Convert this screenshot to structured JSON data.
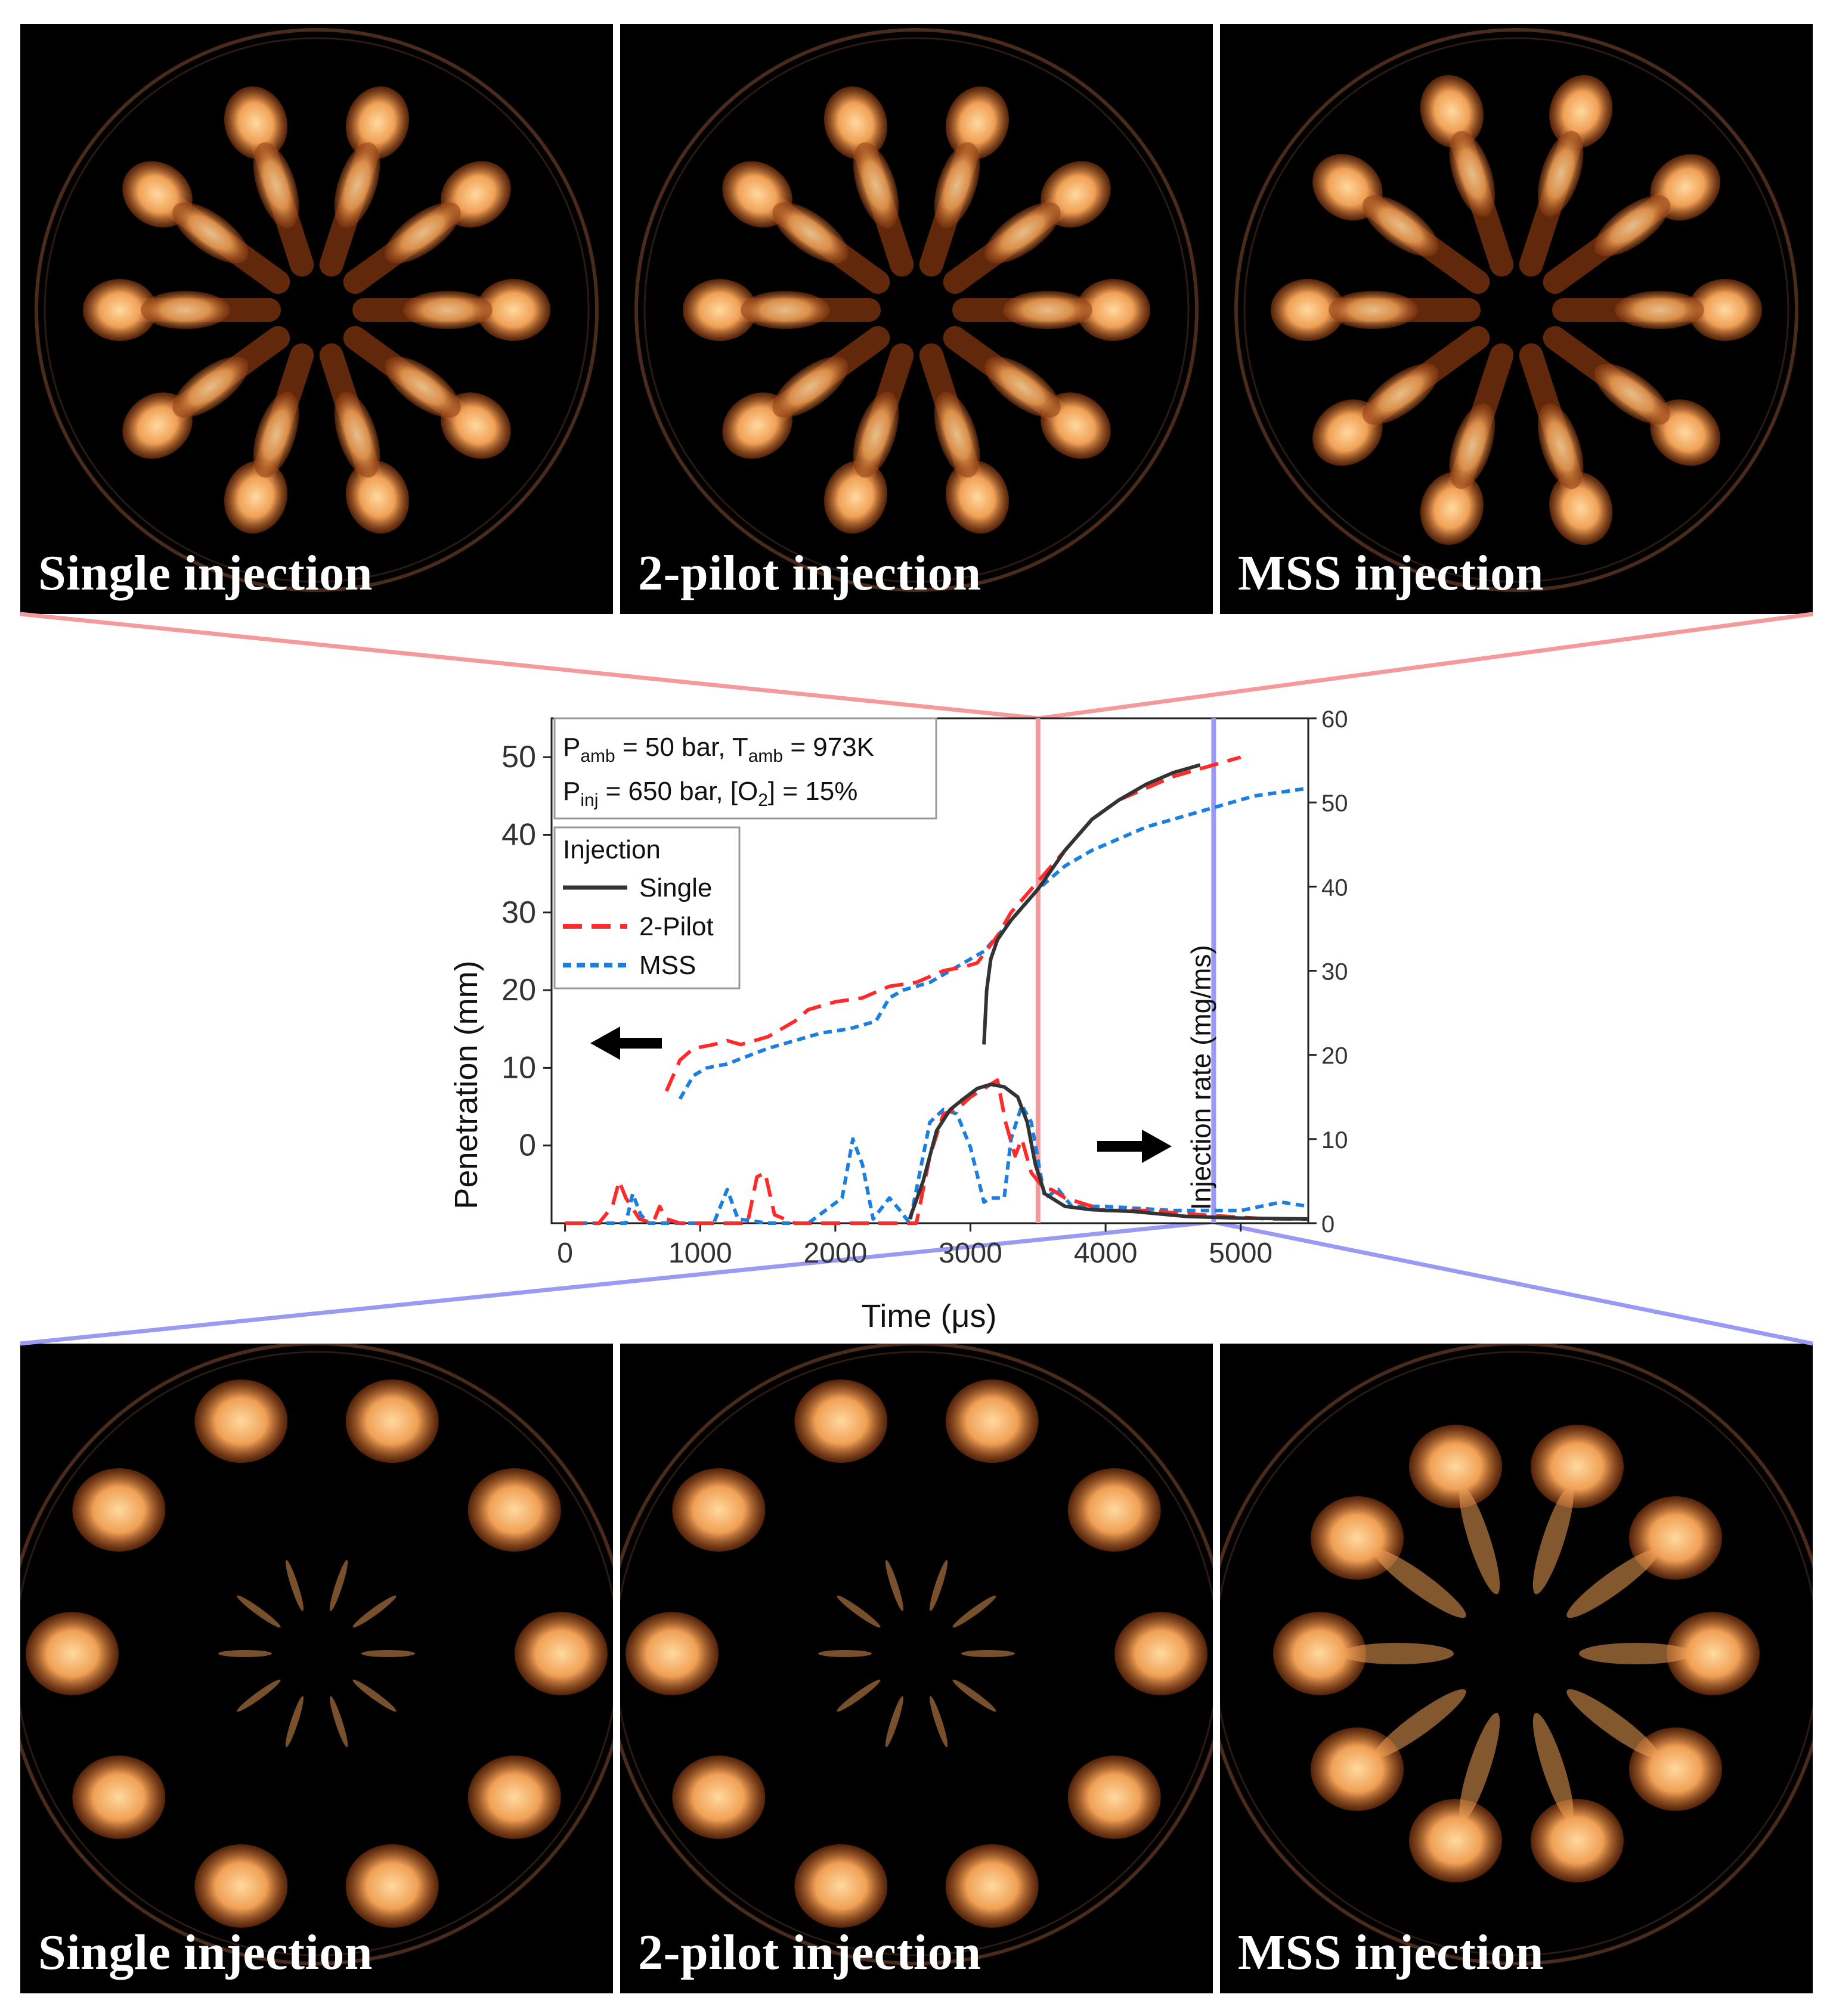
{
  "colors": {
    "single": "#333333",
    "two_pilot": "#ff2a2a",
    "mss": "#1a7fe0",
    "red_marker": "#f59a9a",
    "blue_marker": "#9a9af5",
    "flame_core": "#ffd9a0",
    "flame_mid": "#f0a055",
    "flame_edge": "#8a3a10"
  },
  "panels": {
    "top": [
      {
        "caption": "Single injection",
        "plumes": 10,
        "stage": "early"
      },
      {
        "caption": "2-pilot injection",
        "plumes": 10,
        "stage": "early"
      },
      {
        "caption": "MSS injection",
        "plumes": 10,
        "stage": "early"
      }
    ],
    "bottom": [
      {
        "caption": "Single injection",
        "plumes": 10,
        "stage": "late"
      },
      {
        "caption": "2-pilot injection",
        "plumes": 10,
        "stage": "late"
      },
      {
        "caption": "MSS injection",
        "plumes": 10,
        "stage": "late"
      }
    ]
  },
  "chart_data": {
    "type": "line",
    "xlabel": "Time (μs)",
    "ylabel_left": "Penetration (mm)",
    "ylabel_right": "Injection rate (mg/ms)",
    "xlim": [
      -100,
      5500
    ],
    "ylim_left": [
      -10,
      55
    ],
    "ylim_right": [
      0,
      60
    ],
    "xticks": [
      0,
      1000,
      2000,
      3000,
      4000,
      5000
    ],
    "yticks_left": [
      0,
      10,
      20,
      30,
      40,
      50
    ],
    "yticks_right": [
      0,
      10,
      20,
      30,
      40,
      50,
      60
    ],
    "conditions_line1": {
      "p": "P",
      "p_sub": "amb",
      "p_val": " = 50 bar, ",
      "t": "T",
      "t_sub": "amb",
      "t_val": " = 973K"
    },
    "conditions_line2": {
      "p": "P",
      "p_sub": "inj",
      "p_val": " = 650 bar, [O",
      "o_sub": "2",
      "o_val": "] = 15%"
    },
    "legend_title": "Injection",
    "legend": [
      "Single",
      "2-Pilot",
      "MSS"
    ],
    "markers": {
      "red_time_us": 3500,
      "blue_time_us": 4800
    },
    "penetration": {
      "single": {
        "x": [
          3100,
          3120,
          3150,
          3200,
          3300,
          3400,
          3500,
          3700,
          3900,
          4100,
          4300,
          4500,
          4700
        ],
        "y": [
          13,
          20,
          24,
          26.5,
          29,
          31,
          33,
          38,
          42,
          44.5,
          46.5,
          48,
          49
        ]
      },
      "two_pilot": {
        "x": [
          750,
          850,
          950,
          1100,
          1200,
          1300,
          1500,
          1700,
          1800,
          2000,
          2200,
          2400,
          2600,
          2800,
          2950,
          3050,
          3200,
          3300,
          3500,
          3700,
          3900,
          4100,
          4300,
          4500,
          4700,
          4900,
          5000
        ],
        "y": [
          7,
          11,
          12.5,
          13,
          13.5,
          13,
          14,
          16,
          17.5,
          18.5,
          19,
          20.5,
          21,
          22.5,
          23,
          23.5,
          27,
          30,
          34,
          38,
          42,
          44.5,
          46,
          47.5,
          48.5,
          49.5,
          50
        ]
      },
      "mss": {
        "x": [
          850,
          950,
          1050,
          1200,
          1350,
          1500,
          1700,
          1900,
          2100,
          2300,
          2400,
          2500,
          2700,
          2900,
          3100,
          3300,
          3500,
          3700,
          3900,
          4100,
          4300,
          4500,
          4700,
          4900,
          5100,
          5300,
          5500
        ],
        "y": [
          6,
          9,
          10,
          10.5,
          11.5,
          12.5,
          13.5,
          14.5,
          15,
          16,
          19,
          20,
          21,
          23,
          25,
          29,
          33,
          36,
          38,
          39.5,
          41,
          42,
          43,
          44,
          45,
          45.5,
          46
        ]
      }
    },
    "injection_rate": {
      "single": {
        "x": [
          2550,
          2650,
          2750,
          2850,
          2950,
          3050,
          3150,
          3250,
          3350,
          3420,
          3480,
          3550,
          3700,
          3900,
          4200,
          4600,
          5000,
          5500
        ],
        "y": [
          0.5,
          5,
          11,
          13.5,
          14.8,
          16,
          16.5,
          16.2,
          15,
          12,
          7,
          3.5,
          2,
          1.6,
          1.4,
          0.8,
          0.6,
          0.5
        ]
      },
      "two_pilot": {
        "x": [
          0,
          250,
          350,
          400,
          450,
          550,
          650,
          700,
          750,
          850,
          1350,
          1420,
          1480,
          1550,
          1700,
          2600,
          2700,
          2800,
          2900,
          3000,
          3100,
          3200,
          3260,
          3330,
          3380,
          3450,
          3550,
          3600,
          3700,
          3800,
          4000,
          4300,
          4700,
          5200,
          5500
        ],
        "y": [
          0,
          0,
          2,
          5,
          3,
          0.5,
          0,
          2,
          0.5,
          0,
          0,
          5.5,
          6,
          1,
          0,
          0,
          8,
          13,
          13.5,
          15,
          16,
          17,
          12,
          8,
          10,
          6,
          4,
          4,
          3,
          2.5,
          1.5,
          1.5,
          1,
          0.5,
          0.5
        ]
      },
      "mss": {
        "x": [
          0,
          450,
          500,
          560,
          620,
          800,
          1100,
          1200,
          1280,
          1500,
          1800,
          2050,
          2130,
          2200,
          2280,
          2400,
          2480,
          2550,
          2700,
          2800,
          2900,
          3000,
          3100,
          3150,
          3250,
          3300,
          3380,
          3450,
          3550,
          3650,
          3750,
          4000,
          4500,
          5000,
          5300,
          5500
        ],
        "y": [
          0,
          0,
          3.5,
          1,
          0,
          0,
          0,
          4,
          0.5,
          0,
          0,
          3,
          10,
          7,
          0.5,
          3,
          1.5,
          0,
          12,
          13.5,
          13,
          9,
          2.5,
          3,
          3,
          10,
          14,
          12,
          3,
          4,
          2,
          2,
          1.5,
          1.5,
          2.5,
          2
        ]
      }
    }
  }
}
